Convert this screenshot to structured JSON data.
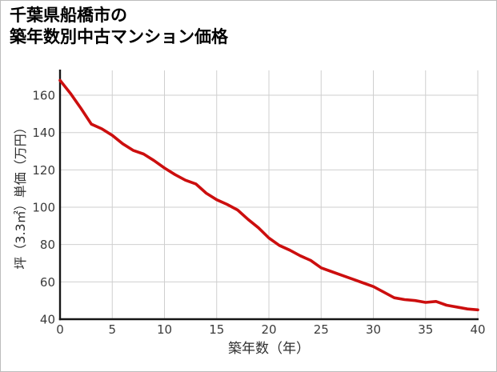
{
  "page": {
    "background": "#ffffff",
    "border_color": "#bdbdbd"
  },
  "header": {
    "title_line1": "千葉県船橋市の",
    "title_line2": "築年数別中古マンション価格"
  },
  "chart_data": {
    "type": "line",
    "title": "千葉県船橋市の築年数別中古マンション価格",
    "xlabel": "築年数（年）",
    "ylabel": "坪（3.3㎡）単価（万円）",
    "x": [
      0,
      1,
      2,
      3,
      4,
      5,
      6,
      7,
      8,
      9,
      10,
      11,
      12,
      13,
      14,
      15,
      16,
      17,
      18,
      19,
      20,
      21,
      22,
      23,
      24,
      25,
      26,
      27,
      28,
      29,
      30,
      31,
      32,
      33,
      34,
      35,
      36,
      37,
      38,
      39,
      40
    ],
    "values": [
      168,
      161,
      153,
      144.5,
      142,
      138.5,
      134,
      130.5,
      128.5,
      125,
      121,
      117.5,
      114.5,
      112.5,
      107.5,
      104,
      101.5,
      98.5,
      93.5,
      89,
      83.5,
      79.5,
      77,
      74,
      71.5,
      67.5,
      65.5,
      63.5,
      61.5,
      59.5,
      57.5,
      54.5,
      51.5,
      50.5,
      50,
      49,
      49.5,
      47.5,
      46.5,
      45.5,
      45
    ],
    "xlim": [
      0,
      40
    ],
    "ylim": [
      40,
      173.3
    ],
    "x_ticks": [
      0,
      5,
      10,
      15,
      20,
      25,
      30,
      35,
      40
    ],
    "y_ticks": [
      40,
      60,
      80,
      100,
      120,
      140,
      160
    ],
    "grid": true,
    "legend": false,
    "line_color": "#cc0e0e",
    "grid_color": "#cfcfcf",
    "axis_color": "#161616",
    "tick_label_color": "#3c3c3c"
  }
}
